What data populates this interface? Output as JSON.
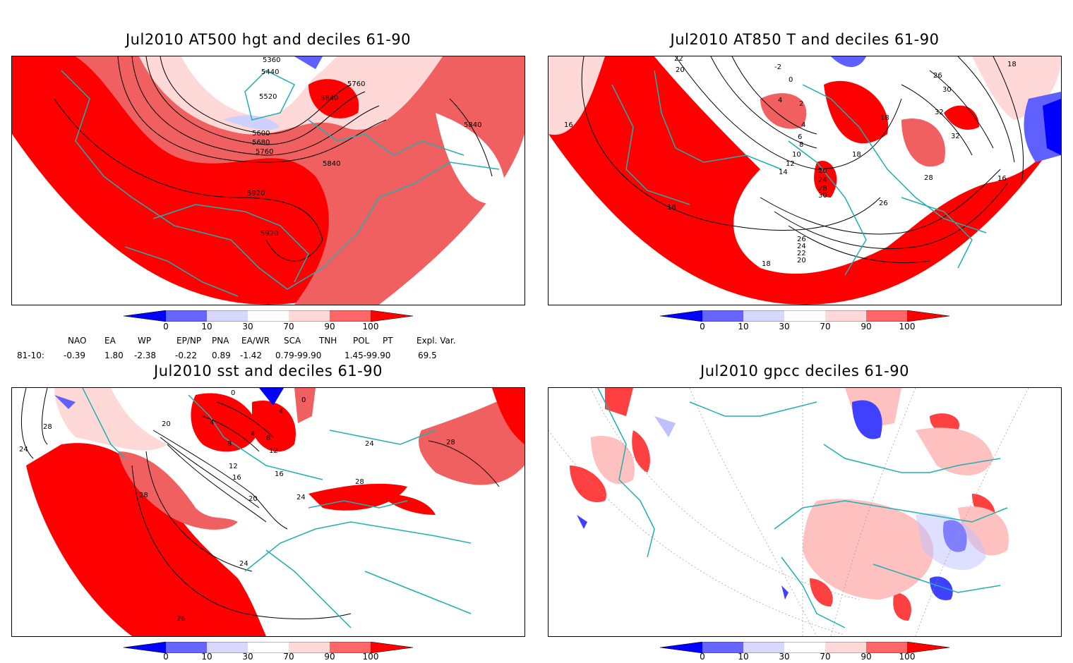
{
  "panels": [
    {
      "title": "Jul2010 AT500 hgt and deciles 61-90",
      "contour_labels": [
        "5360",
        "5440",
        "5520",
        "5600",
        "5680",
        "5760",
        "5760",
        "5840",
        "5840",
        "5840",
        "5920",
        "5920"
      ]
    },
    {
      "title": "Jul2010 AT850 T and deciles 61-90",
      "contour_labels": [
        "22",
        "20",
        "-2",
        "0",
        "4",
        "2",
        "4",
        "6",
        "8",
        "10",
        "12",
        "14",
        "18",
        "18",
        "16",
        "18",
        "20",
        "24",
        "28",
        "30",
        "26",
        "26",
        "24",
        "22",
        "20",
        "26",
        "30",
        "32",
        "32",
        "28",
        "16",
        "18",
        "18"
      ]
    },
    {
      "title": "Jul2010 sst and deciles 61-90",
      "contour_labels": [
        "28",
        "24",
        "0",
        "0",
        "4",
        "4",
        "8",
        "4",
        "8",
        "12",
        "12",
        "16",
        "16",
        "20",
        "20",
        "24",
        "24",
        "28",
        "28",
        "28",
        "24",
        "28",
        "26"
      ]
    },
    {
      "title": "Jul2010 gpcc deciles 61-90",
      "contour_labels": []
    }
  ],
  "colorbar": {
    "ticks": [
      "0",
      "10",
      "30",
      "70",
      "90",
      "100"
    ],
    "colors": [
      "#0000ff",
      "#6666ff",
      "#d8d8ff",
      "#ffffff",
      "#ffd8d8",
      "#ff6666",
      "#ff0000"
    ]
  },
  "indices": {
    "headers": [
      "NAO",
      "EA",
      "WP",
      "EP/NP",
      "PNA",
      "EA/WR",
      "SCA",
      "TNH",
      "POL",
      "PT",
      "Expl. Var."
    ],
    "row_label": "81-10:",
    "values": [
      "-0.39",
      "1.80",
      "-2.38",
      "-0.22",
      "0.89",
      "-1.42",
      "0.79-99.90",
      "",
      "1.45-99.90",
      "",
      "69.5"
    ]
  },
  "colors": {
    "coast": "#20b0b0",
    "deep_red": "#ff0000",
    "mid_red": "#f06060",
    "light_red": "#ffd8d8",
    "light_blue": "#d0d0ff",
    "mid_blue": "#6060ff",
    "deep_blue": "#0000ff"
  }
}
